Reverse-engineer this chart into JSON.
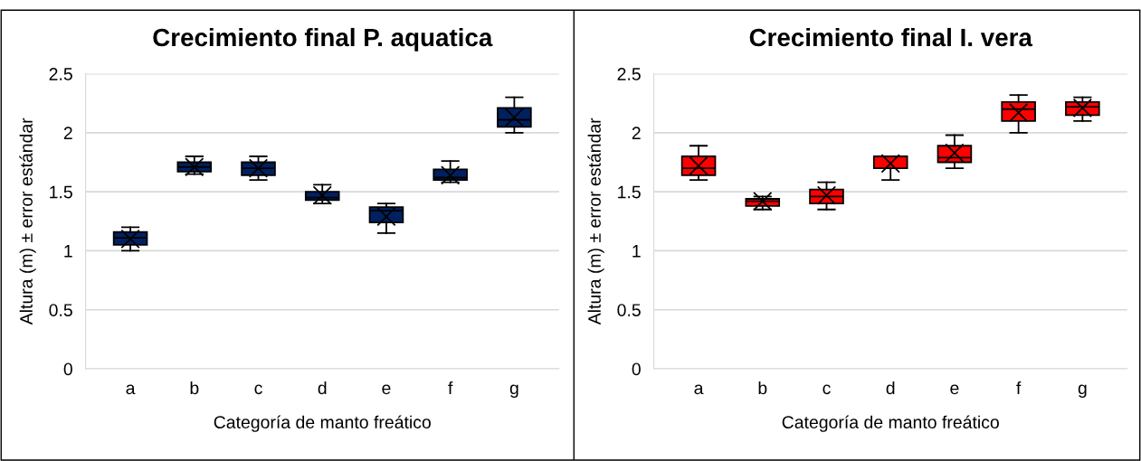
{
  "chart_data": [
    {
      "type": "box",
      "title": "Crecimiento final P. aquatica",
      "xlabel": "Categoría de manto freático",
      "ylabel": "Altura (m) ± error estándar",
      "categories": [
        "a",
        "b",
        "c",
        "d",
        "e",
        "f",
        "g"
      ],
      "color": "#002060",
      "ylim": [
        0,
        2.5
      ],
      "yticks": [
        0,
        0.5,
        1,
        1.5,
        2,
        2.5
      ],
      "grid": "y",
      "boxes": [
        {
          "low": 1.0,
          "q1": 1.05,
          "median": 1.11,
          "q3": 1.16,
          "high": 1.2,
          "mean": 1.1
        },
        {
          "low": 1.65,
          "q1": 1.67,
          "median": 1.71,
          "q3": 1.75,
          "high": 1.8,
          "mean": 1.71
        },
        {
          "low": 1.6,
          "q1": 1.64,
          "median": 1.7,
          "q3": 1.75,
          "high": 1.8,
          "mean": 1.7
        },
        {
          "low": 1.4,
          "q1": 1.43,
          "median": 1.45,
          "q3": 1.5,
          "high": 1.56,
          "mean": 1.47
        },
        {
          "low": 1.15,
          "q1": 1.24,
          "median": 1.34,
          "q3": 1.37,
          "high": 1.4,
          "mean": 1.29
        },
        {
          "low": 1.58,
          "q1": 1.6,
          "median": 1.62,
          "q3": 1.69,
          "high": 1.76,
          "mean": 1.64
        },
        {
          "low": 2.0,
          "q1": 2.05,
          "median": 2.11,
          "q3": 2.21,
          "high": 2.3,
          "mean": 2.13
        }
      ]
    },
    {
      "type": "box",
      "title": "Crecimiento final I. vera",
      "xlabel": "Categoría de manto freático",
      "ylabel": "Altura (m) ± error estándar",
      "categories": [
        "a",
        "b",
        "c",
        "d",
        "e",
        "f",
        "g"
      ],
      "color": "#ff0000",
      "ylim": [
        0,
        2.5
      ],
      "yticks": [
        0,
        0.5,
        1,
        1.5,
        2,
        2.5
      ],
      "grid": "y",
      "boxes": [
        {
          "low": 1.6,
          "q1": 1.64,
          "median": 1.7,
          "q3": 1.8,
          "high": 1.89,
          "mean": 1.72
        },
        {
          "low": 1.35,
          "q1": 1.38,
          "median": 1.42,
          "q3": 1.44,
          "high": 1.46,
          "mean": 1.42
        },
        {
          "low": 1.35,
          "q1": 1.4,
          "median": 1.46,
          "q3": 1.52,
          "high": 1.58,
          "mean": 1.47
        },
        {
          "low": 1.6,
          "q1": 1.7,
          "median": 1.8,
          "q3": 1.8,
          "high": 1.8,
          "mean": 1.74
        },
        {
          "low": 1.7,
          "q1": 1.75,
          "median": 1.79,
          "q3": 1.89,
          "high": 1.98,
          "mean": 1.83
        },
        {
          "low": 2.0,
          "q1": 2.1,
          "median": 2.2,
          "q3": 2.26,
          "high": 2.32,
          "mean": 2.17
        },
        {
          "low": 2.1,
          "q1": 2.15,
          "median": 2.22,
          "q3": 2.26,
          "high": 2.3,
          "mean": 2.21
        }
      ]
    }
  ]
}
